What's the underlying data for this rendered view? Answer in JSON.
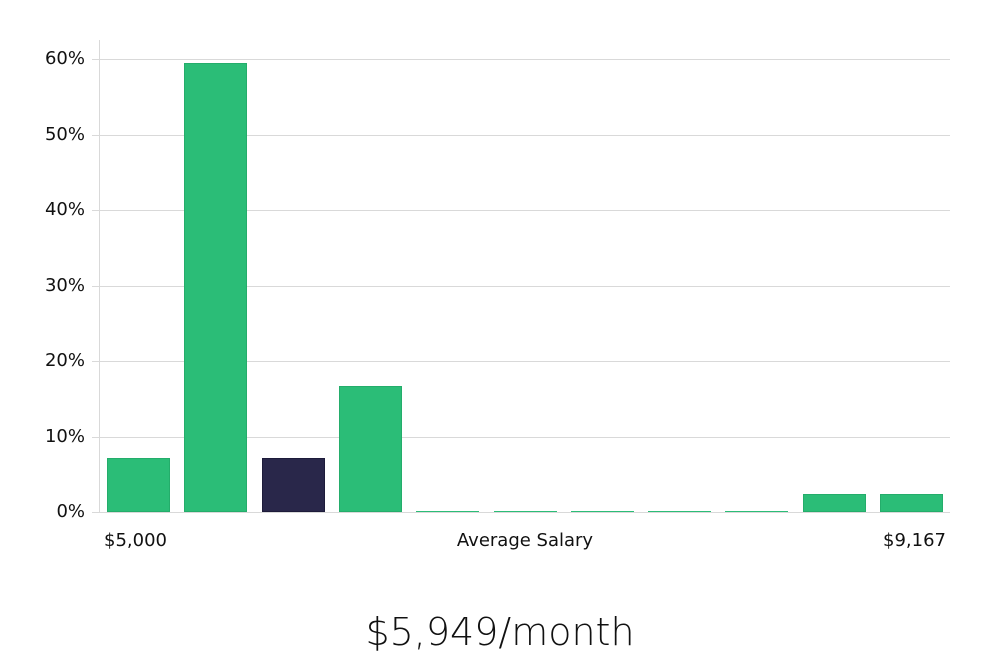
{
  "chart_data": {
    "type": "bar",
    "title": "",
    "xlabel": "Average Salary",
    "ylabel": "",
    "x_range_labels": {
      "min": "$5,000",
      "max": "$9,167"
    },
    "categories": [
      "bin1",
      "bin2",
      "bin3",
      "bin4",
      "bin5",
      "bin6",
      "bin7",
      "bin8",
      "bin9",
      "bin10",
      "bin11"
    ],
    "values": [
      7.1,
      59.5,
      7.1,
      16.7,
      0,
      0,
      0,
      0,
      0,
      2.4,
      2.4
    ],
    "highlight_index": 2,
    "ylim": [
      0,
      60
    ],
    "yticks": [
      "0%",
      "10%",
      "20%",
      "30%",
      "40%",
      "50%",
      "60%"
    ],
    "grid": true,
    "colors": {
      "bar": "#2bbd77",
      "highlight": "#29274a",
      "grid": "#d9d9d9"
    }
  },
  "labels": {
    "x_min": "$5,000",
    "x_center": "Average Salary",
    "x_max": "$9,167"
  },
  "summary": "$5,949/month"
}
